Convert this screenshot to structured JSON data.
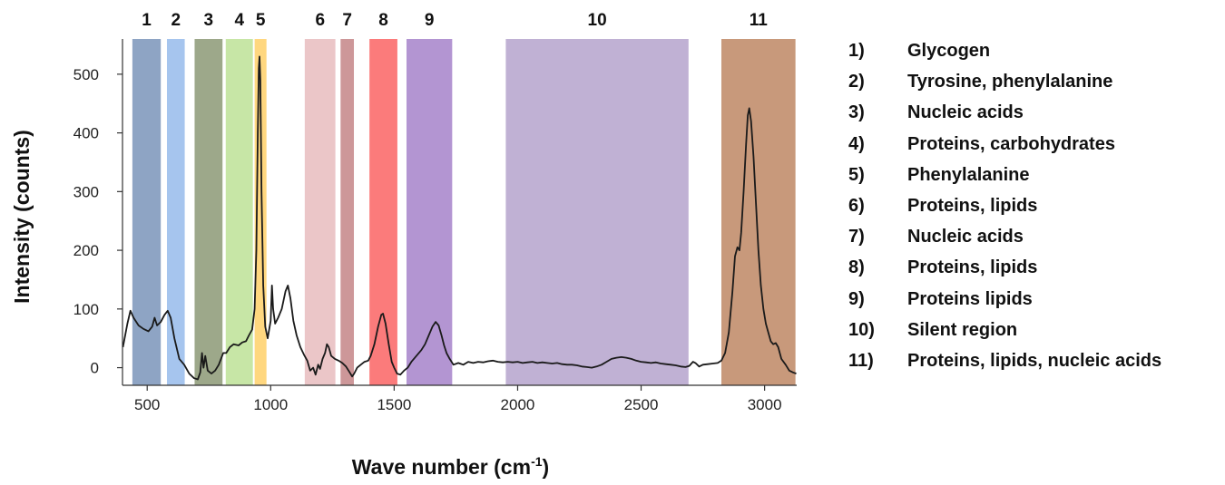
{
  "chart_data": {
    "type": "line",
    "xlabel": "Wave number (cm",
    "xlabel_sup": "-1",
    "xlabel_end": ")",
    "ylabel": "Intensity (counts)",
    "xlim": [
      400,
      3130
    ],
    "ylim": [
      -30,
      560
    ],
    "x_ticks": [
      500,
      1000,
      1500,
      2000,
      2500,
      3000
    ],
    "y_ticks": [
      0,
      100,
      200,
      300,
      400,
      500
    ],
    "grid": false,
    "bands": [
      {
        "label": "1",
        "x0": 440,
        "x1": 555,
        "color": "#8ea4c4"
      },
      {
        "label": "2",
        "x0": 580,
        "x1": 652,
        "color": "#a6c5ee"
      },
      {
        "label": "3",
        "x0": 692,
        "x1": 805,
        "color": "#9da88a"
      },
      {
        "label": "4",
        "x0": 818,
        "x1": 928,
        "color": "#c7e6a6"
      },
      {
        "label": "5",
        "x0": 935,
        "x1": 983,
        "color": "#ffd77f"
      },
      {
        "label": "6",
        "x0": 1138,
        "x1": 1262,
        "color": "#ebc6c8"
      },
      {
        "label": "7",
        "x0": 1283,
        "x1": 1337,
        "color": "#cd9799"
      },
      {
        "label": "8",
        "x0": 1400,
        "x1": 1513,
        "color": "#fb7b7b"
      },
      {
        "label": "9",
        "x0": 1550,
        "x1": 1735,
        "color": "#b395d2"
      },
      {
        "label": "10",
        "x0": 1952,
        "x1": 2692,
        "color": "#c0b1d4"
      },
      {
        "label": "11",
        "x0": 2825,
        "x1": 3125,
        "color": "#c8997b"
      }
    ],
    "series": [
      {
        "color": "#1a1a1a",
        "points": [
          [
            402,
            35
          ],
          [
            420,
            75
          ],
          [
            432,
            97
          ],
          [
            445,
            85
          ],
          [
            465,
            72
          ],
          [
            485,
            66
          ],
          [
            505,
            62
          ],
          [
            520,
            70
          ],
          [
            530,
            85
          ],
          [
            540,
            72
          ],
          [
            555,
            78
          ],
          [
            570,
            90
          ],
          [
            583,
            97
          ],
          [
            595,
            85
          ],
          [
            610,
            50
          ],
          [
            630,
            15
          ],
          [
            650,
            5
          ],
          [
            670,
            -10
          ],
          [
            690,
            -18
          ],
          [
            705,
            -20
          ],
          [
            715,
            -8
          ],
          [
            722,
            25
          ],
          [
            728,
            0
          ],
          [
            735,
            20
          ],
          [
            745,
            -5
          ],
          [
            760,
            -10
          ],
          [
            775,
            -5
          ],
          [
            790,
            5
          ],
          [
            808,
            25
          ],
          [
            820,
            25
          ],
          [
            835,
            35
          ],
          [
            850,
            40
          ],
          [
            870,
            38
          ],
          [
            885,
            43
          ],
          [
            900,
            45
          ],
          [
            912,
            55
          ],
          [
            925,
            65
          ],
          [
            935,
            100
          ],
          [
            942,
            200
          ],
          [
            948,
            400
          ],
          [
            952,
            510
          ],
          [
            955,
            530
          ],
          [
            958,
            490
          ],
          [
            963,
            300
          ],
          [
            970,
            140
          ],
          [
            978,
            70
          ],
          [
            988,
            50
          ],
          [
            1000,
            80
          ],
          [
            1005,
            140
          ],
          [
            1010,
            100
          ],
          [
            1018,
            75
          ],
          [
            1030,
            85
          ],
          [
            1045,
            100
          ],
          [
            1060,
            130
          ],
          [
            1070,
            140
          ],
          [
            1080,
            118
          ],
          [
            1092,
            80
          ],
          [
            1105,
            55
          ],
          [
            1120,
            35
          ],
          [
            1135,
            22
          ],
          [
            1148,
            12
          ],
          [
            1160,
            -5
          ],
          [
            1172,
            0
          ],
          [
            1182,
            -12
          ],
          [
            1192,
            5
          ],
          [
            1200,
            -2
          ],
          [
            1210,
            15
          ],
          [
            1220,
            25
          ],
          [
            1228,
            40
          ],
          [
            1235,
            35
          ],
          [
            1245,
            20
          ],
          [
            1260,
            15
          ],
          [
            1275,
            12
          ],
          [
            1290,
            8
          ],
          [
            1305,
            2
          ],
          [
            1320,
            -8
          ],
          [
            1330,
            -15
          ],
          [
            1338,
            -10
          ],
          [
            1350,
            0
          ],
          [
            1365,
            5
          ],
          [
            1380,
            10
          ],
          [
            1395,
            12
          ],
          [
            1405,
            20
          ],
          [
            1420,
            40
          ],
          [
            1435,
            70
          ],
          [
            1448,
            90
          ],
          [
            1455,
            92
          ],
          [
            1465,
            75
          ],
          [
            1478,
            40
          ],
          [
            1490,
            10
          ],
          [
            1500,
            0
          ],
          [
            1512,
            -10
          ],
          [
            1525,
            -12
          ],
          [
            1540,
            -5
          ],
          [
            1555,
            0
          ],
          [
            1570,
            10
          ],
          [
            1590,
            20
          ],
          [
            1610,
            30
          ],
          [
            1625,
            40
          ],
          [
            1640,
            55
          ],
          [
            1655,
            70
          ],
          [
            1668,
            78
          ],
          [
            1680,
            72
          ],
          [
            1692,
            55
          ],
          [
            1702,
            38
          ],
          [
            1712,
            25
          ],
          [
            1725,
            15
          ],
          [
            1740,
            5
          ],
          [
            1760,
            8
          ],
          [
            1780,
            5
          ],
          [
            1800,
            10
          ],
          [
            1820,
            8
          ],
          [
            1840,
            10
          ],
          [
            1860,
            9
          ],
          [
            1880,
            11
          ],
          [
            1900,
            12
          ],
          [
            1920,
            10
          ],
          [
            1940,
            9
          ],
          [
            1960,
            10
          ],
          [
            1980,
            9
          ],
          [
            2000,
            10
          ],
          [
            2020,
            8
          ],
          [
            2040,
            9
          ],
          [
            2060,
            10
          ],
          [
            2080,
            8
          ],
          [
            2100,
            9
          ],
          [
            2120,
            8
          ],
          [
            2140,
            7
          ],
          [
            2160,
            8
          ],
          [
            2180,
            6
          ],
          [
            2200,
            5
          ],
          [
            2220,
            5
          ],
          [
            2240,
            4
          ],
          [
            2260,
            2
          ],
          [
            2280,
            1
          ],
          [
            2300,
            0
          ],
          [
            2320,
            2
          ],
          [
            2340,
            5
          ],
          [
            2360,
            10
          ],
          [
            2380,
            15
          ],
          [
            2400,
            17
          ],
          [
            2420,
            18
          ],
          [
            2440,
            17
          ],
          [
            2460,
            15
          ],
          [
            2480,
            12
          ],
          [
            2500,
            10
          ],
          [
            2520,
            9
          ],
          [
            2540,
            8
          ],
          [
            2560,
            9
          ],
          [
            2580,
            7
          ],
          [
            2600,
            6
          ],
          [
            2620,
            5
          ],
          [
            2640,
            4
          ],
          [
            2660,
            2
          ],
          [
            2680,
            1
          ],
          [
            2695,
            3
          ],
          [
            2710,
            10
          ],
          [
            2720,
            8
          ],
          [
            2735,
            2
          ],
          [
            2750,
            5
          ],
          [
            2770,
            6
          ],
          [
            2790,
            7
          ],
          [
            2810,
            8
          ],
          [
            2825,
            12
          ],
          [
            2840,
            25
          ],
          [
            2855,
            60
          ],
          [
            2870,
            130
          ],
          [
            2880,
            190
          ],
          [
            2890,
            205
          ],
          [
            2898,
            200
          ],
          [
            2905,
            230
          ],
          [
            2915,
            300
          ],
          [
            2925,
            380
          ],
          [
            2932,
            430
          ],
          [
            2938,
            442
          ],
          [
            2945,
            420
          ],
          [
            2955,
            360
          ],
          [
            2965,
            280
          ],
          [
            2975,
            200
          ],
          [
            2985,
            140
          ],
          [
            2995,
            100
          ],
          [
            3005,
            75
          ],
          [
            3015,
            60
          ],
          [
            3025,
            45
          ],
          [
            3035,
            40
          ],
          [
            3045,
            42
          ],
          [
            3055,
            35
          ],
          [
            3068,
            15
          ],
          [
            3085,
            5
          ],
          [
            3100,
            -5
          ],
          [
            3115,
            -8
          ],
          [
            3128,
            -10
          ]
        ]
      }
    ]
  },
  "legend": [
    {
      "num": "1)",
      "text": "Glycogen"
    },
    {
      "num": "2)",
      "text": "Tyrosine, phenylalanine"
    },
    {
      "num": "3)",
      "text": "Nucleic acids"
    },
    {
      "num": "4)",
      "text": "Proteins, carbohydrates"
    },
    {
      "num": "5)",
      "text": "Phenylalanine"
    },
    {
      "num": "6)",
      "text": "Proteins, lipids"
    },
    {
      "num": "7)",
      "text": "Nucleic acids"
    },
    {
      "num": "8)",
      "text": "Proteins, lipids"
    },
    {
      "num": "9)",
      "text": "Proteins lipids"
    },
    {
      "num": "10)",
      "text": "Silent region"
    },
    {
      "num": "11)",
      "text": "Proteins, lipids, nucleic acids"
    }
  ]
}
